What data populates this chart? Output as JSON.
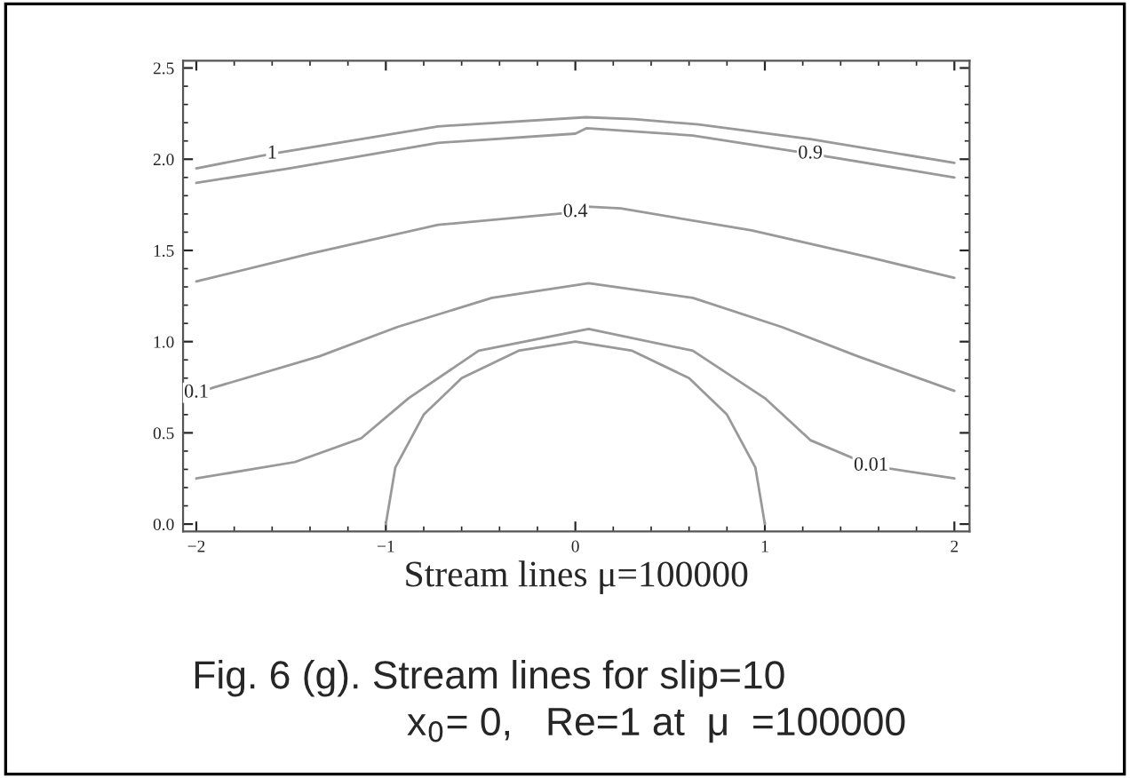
{
  "chart_data": {
    "type": "line",
    "xlabel": "Stream lines μ=100000",
    "annotations": [
      "Fig. 6 (g). Stream lines for slip=10",
      "x$_{0}$= 0,   Re=1 at  μ  =100000"
    ],
    "series": [
      {
        "name": "1",
        "color": "#999999",
        "x": [
          -2,
          -1.6,
          -0.725,
          0.056,
          0.31,
          0.65,
          1.24,
          2.0
        ],
        "values": [
          1.95,
          2.03,
          2.18,
          2.23,
          2.22,
          2.19,
          2.11,
          1.98
        ]
      },
      {
        "name": "0.9",
        "color": "#999999",
        "x": [
          -2,
          -1.51,
          -0.725,
          0.0,
          0.06,
          0.62,
          1.24,
          2.0
        ],
        "values": [
          1.87,
          1.95,
          2.09,
          2.14,
          2.17,
          2.13,
          2.03,
          1.9
        ]
      },
      {
        "name": "0.4",
        "color": "#999999",
        "x": [
          -2,
          -1.41,
          -0.725,
          0.0,
          0.06,
          0.24,
          0.93,
          1.56,
          2.0
        ],
        "values": [
          1.33,
          1.48,
          1.64,
          1.71,
          1.74,
          1.73,
          1.61,
          1.46,
          1.35
        ]
      },
      {
        "name": "0.1",
        "color": "#999999",
        "x": [
          -2,
          -1.35,
          -0.94,
          -0.44,
          0.07,
          0.62,
          1.09,
          1.49,
          2.0
        ],
        "values": [
          0.72,
          0.92,
          1.08,
          1.24,
          1.32,
          1.24,
          1.08,
          0.92,
          0.73
        ]
      },
      {
        "name": "0.01",
        "color": "#999999",
        "x": [
          -2,
          -1.48,
          -1.13,
          -0.88,
          -0.51,
          0.07,
          0.62,
          1.0,
          1.24,
          1.56,
          2.0
        ],
        "values": [
          0.25,
          0.34,
          0.47,
          0.69,
          0.95,
          1.07,
          0.95,
          0.69,
          0.46,
          0.32,
          0.25
        ]
      },
      {
        "color": "#999999",
        "x": [
          -1,
          -0.95,
          -0.8,
          -0.6,
          -0.3,
          0,
          0.3,
          0.6,
          0.8,
          0.95,
          1
        ],
        "values": [
          0,
          0.31,
          0.6,
          0.8,
          0.95,
          1,
          0.95,
          0.8,
          0.6,
          0.31,
          0
        ]
      }
    ],
    "xlim": [
      -2.07,
      2.08
    ],
    "ylim": [
      -0.04,
      2.54
    ],
    "xticks": [
      {
        "value": -2,
        "label": "−2"
      },
      {
        "value": -1,
        "label": "−1"
      },
      0,
      1,
      2
    ],
    "yticks": [
      {
        "value": 0,
        "label": "0.0"
      },
      {
        "value": 0.5,
        "label": "0.5"
      },
      {
        "value": 1,
        "label": "1.0"
      },
      {
        "value": 1.5,
        "label": "1.5"
      },
      {
        "value": 2,
        "label": "2.0"
      },
      {
        "value": 2.5,
        "label": "2.5"
      }
    ],
    "grid": false,
    "legend": false
  }
}
